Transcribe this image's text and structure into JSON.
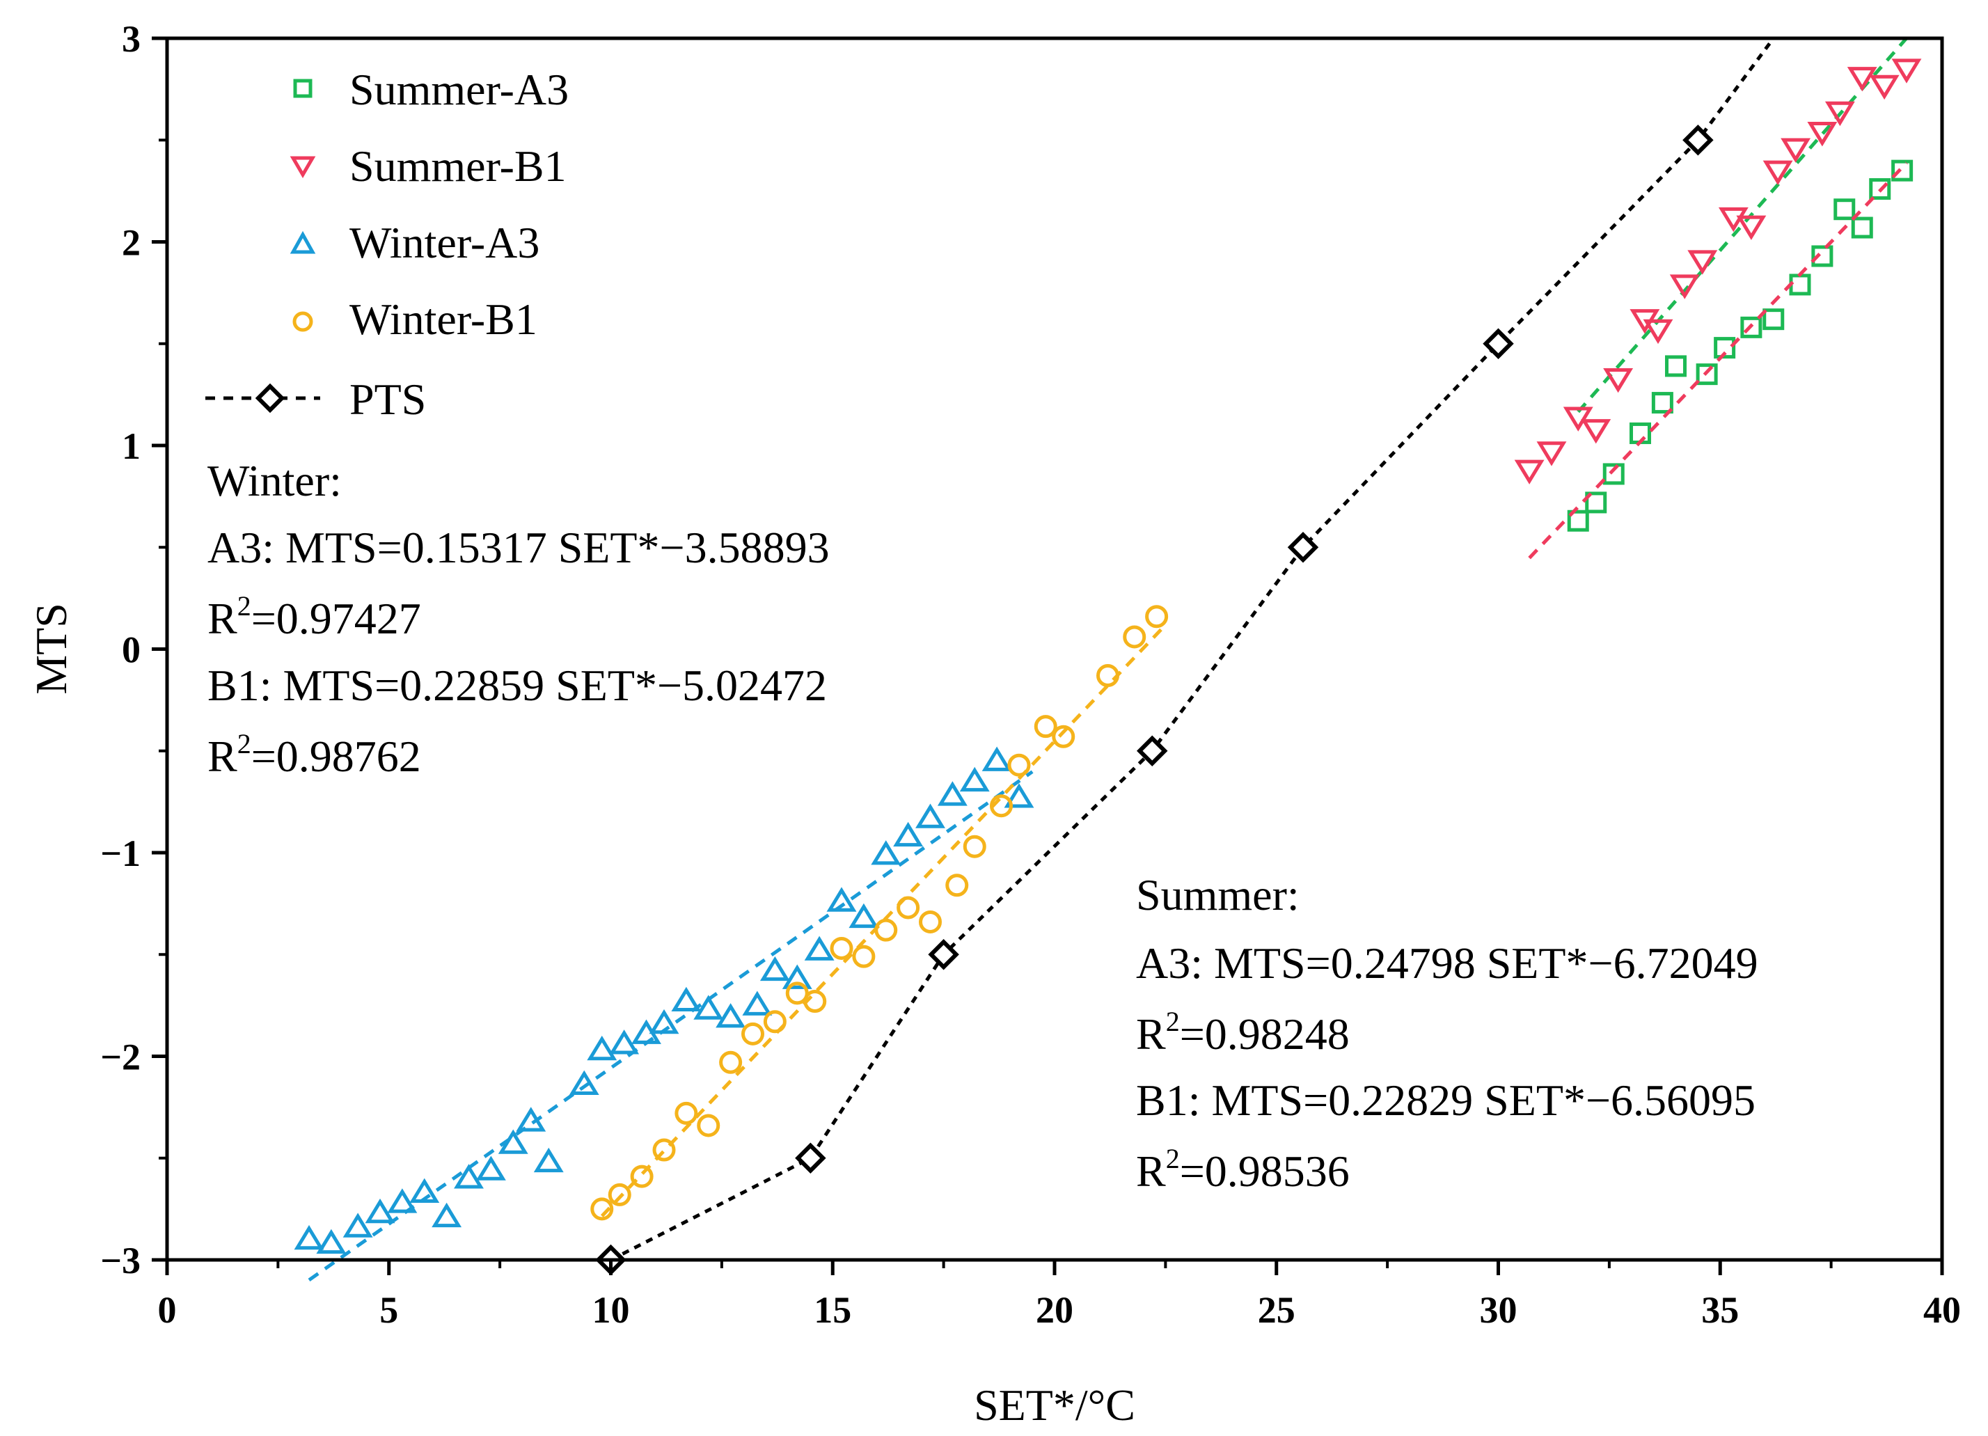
{
  "chart_data": {
    "type": "scatter",
    "xlabel": "SET*/°C",
    "ylabel": "MTS",
    "xlim": [
      0,
      40
    ],
    "ylim": [
      -3,
      3
    ],
    "xticks": [
      0,
      5,
      10,
      15,
      20,
      25,
      30,
      35,
      40
    ],
    "yticks": [
      -3,
      -2,
      -1,
      0,
      1,
      2,
      3
    ],
    "xtick_labels": [
      "0",
      "5",
      "10",
      "15",
      "20",
      "25",
      "30",
      "35",
      "40"
    ],
    "ytick_labels": [
      "−3",
      "−2",
      "−1",
      "0",
      "1",
      "2",
      "3"
    ],
    "grid": false,
    "legend_position": "top-left",
    "series": [
      {
        "name": "Summer-A3",
        "marker": "square",
        "color": "#1db954",
        "fit": {
          "slope": 0.24798,
          "intercept": -6.72049,
          "x_range": [
            31.8,
            39.2
          ]
        },
        "points": [
          [
            31.8,
            0.63
          ],
          [
            32.2,
            0.72
          ],
          [
            32.6,
            0.86
          ],
          [
            33.2,
            1.06
          ],
          [
            33.7,
            1.21
          ],
          [
            34.0,
            1.39
          ],
          [
            34.7,
            1.35
          ],
          [
            35.1,
            1.48
          ],
          [
            35.7,
            1.58
          ],
          [
            36.2,
            1.62
          ],
          [
            36.8,
            1.79
          ],
          [
            37.3,
            1.93
          ],
          [
            37.8,
            2.16
          ],
          [
            38.2,
            2.07
          ],
          [
            38.6,
            2.26
          ],
          [
            39.1,
            2.35
          ]
        ]
      },
      {
        "name": "Summer-B1",
        "marker": "triangle-down",
        "color": "#ef3b5d",
        "fit": {
          "slope": 0.22829,
          "intercept": -6.56095,
          "x_range": [
            30.7,
            39.2
          ]
        },
        "points": [
          [
            30.7,
            0.88
          ],
          [
            31.2,
            0.97
          ],
          [
            31.8,
            1.14
          ],
          [
            32.2,
            1.08
          ],
          [
            32.7,
            1.33
          ],
          [
            33.3,
            1.62
          ],
          [
            33.6,
            1.57
          ],
          [
            34.2,
            1.79
          ],
          [
            34.6,
            1.91
          ],
          [
            35.3,
            2.12
          ],
          [
            35.7,
            2.08
          ],
          [
            36.3,
            2.35
          ],
          [
            36.7,
            2.46
          ],
          [
            37.3,
            2.54
          ],
          [
            37.7,
            2.64
          ],
          [
            38.2,
            2.81
          ],
          [
            38.7,
            2.77
          ],
          [
            39.2,
            2.85
          ]
        ]
      },
      {
        "name": "Winter-A3",
        "marker": "triangle-up",
        "color": "#1a9bd7",
        "fit": {
          "slope": 0.15317,
          "intercept": -3.58893,
          "x_range": [
            3.2,
            19.5
          ]
        },
        "points": [
          [
            3.2,
            -2.9
          ],
          [
            3.7,
            -2.92
          ],
          [
            4.3,
            -2.84
          ],
          [
            4.8,
            -2.77
          ],
          [
            5.3,
            -2.72
          ],
          [
            5.8,
            -2.67
          ],
          [
            6.3,
            -2.79
          ],
          [
            6.8,
            -2.6
          ],
          [
            7.3,
            -2.56
          ],
          [
            7.8,
            -2.43
          ],
          [
            8.2,
            -2.32
          ],
          [
            8.6,
            -2.52
          ],
          [
            9.4,
            -2.14
          ],
          [
            9.8,
            -1.97
          ],
          [
            10.3,
            -1.94
          ],
          [
            10.8,
            -1.89
          ],
          [
            11.2,
            -1.84
          ],
          [
            11.7,
            -1.73
          ],
          [
            12.2,
            -1.77
          ],
          [
            12.7,
            -1.81
          ],
          [
            13.3,
            -1.75
          ],
          [
            13.7,
            -1.58
          ],
          [
            14.2,
            -1.62
          ],
          [
            14.7,
            -1.48
          ],
          [
            15.2,
            -1.24
          ],
          [
            15.7,
            -1.32
          ],
          [
            16.2,
            -1.01
          ],
          [
            16.7,
            -0.92
          ],
          [
            17.2,
            -0.83
          ],
          [
            17.7,
            -0.72
          ],
          [
            18.2,
            -0.65
          ],
          [
            18.7,
            -0.55
          ],
          [
            19.2,
            -0.73
          ]
        ]
      },
      {
        "name": "Winter-B1",
        "marker": "circle",
        "color": "#f5b31b",
        "fit": {
          "slope": 0.22859,
          "intercept": -5.02472,
          "x_range": [
            9.8,
            22.4
          ]
        },
        "points": [
          [
            9.8,
            -2.75
          ],
          [
            10.2,
            -2.68
          ],
          [
            10.7,
            -2.59
          ],
          [
            11.2,
            -2.46
          ],
          [
            11.7,
            -2.28
          ],
          [
            12.2,
            -2.34
          ],
          [
            12.7,
            -2.03
          ],
          [
            13.2,
            -1.89
          ],
          [
            13.7,
            -1.83
          ],
          [
            14.2,
            -1.69
          ],
          [
            14.6,
            -1.73
          ],
          [
            15.2,
            -1.47
          ],
          [
            15.7,
            -1.51
          ],
          [
            16.2,
            -1.38
          ],
          [
            16.7,
            -1.27
          ],
          [
            17.2,
            -1.34
          ],
          [
            17.8,
            -1.16
          ],
          [
            18.2,
            -0.97
          ],
          [
            18.8,
            -0.77
          ],
          [
            19.2,
            -0.57
          ],
          [
            19.8,
            -0.38
          ],
          [
            20.2,
            -0.43
          ],
          [
            21.2,
            -0.13
          ],
          [
            21.8,
            0.06
          ],
          [
            22.3,
            0.16
          ]
        ]
      },
      {
        "name": "PTS",
        "marker": "diamond",
        "color": "#000000",
        "line": "dashed",
        "points": [
          [
            10.0,
            -3.0
          ],
          [
            14.5,
            -2.5
          ],
          [
            17.5,
            -1.5
          ],
          [
            22.2,
            -0.5
          ],
          [
            25.6,
            0.5
          ],
          [
            30.0,
            1.5
          ],
          [
            34.5,
            2.5
          ]
        ],
        "line_extension": [
          36.2,
          3.0
        ]
      }
    ],
    "annotations": {
      "winter": {
        "heading": "Winter:",
        "a3_eq": "A3: MTS=0.15317 SET*−3.58893",
        "a3_r2": "=0.97427",
        "b1_eq": "B1: MTS=0.22859 SET*−5.02472",
        "b1_r2": "=0.98762"
      },
      "summer": {
        "heading": "Summer:",
        "a3_eq": "A3: MTS=0.24798 SET*−6.72049",
        "a3_r2": "=0.98248",
        "b1_eq": "B1: MTS=0.22829 SET*−6.56095",
        "b1_r2": "=0.98536"
      },
      "r2_prefix": "R",
      "r2_sup": "2"
    }
  }
}
